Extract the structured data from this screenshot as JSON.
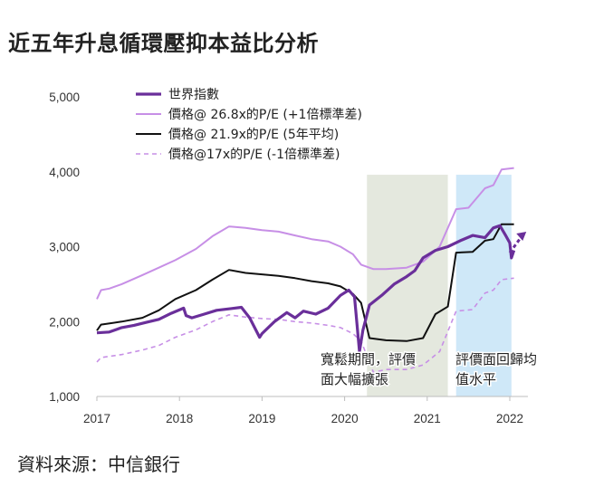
{
  "title": "近五年升息循環壓抑本益比分析",
  "source": "資料來源：中信銀行",
  "chart_data": {
    "type": "line",
    "title": "近五年升息循環壓抑本益比分析",
    "xlabel": "",
    "ylabel": "",
    "xlim": [
      2017.0,
      2022.2
    ],
    "ylim": [
      1000,
      5000
    ],
    "x_ticks": [
      "2017",
      "2018",
      "2019",
      "2020",
      "2021",
      "2022"
    ],
    "y_ticks": [
      "1,000",
      "2,000",
      "3,000",
      "4,000",
      "5,000"
    ],
    "y_tick_values": [
      1000,
      2000,
      3000,
      4000,
      5000
    ],
    "x_tick_values": [
      2017,
      2018,
      2019,
      2020,
      2021,
      2022
    ],
    "legend": [
      {
        "label": "世界指數",
        "style": "thick-solid",
        "color": "#6a2f9a"
      },
      {
        "label": "價格@ 26.8x的P/E (+1倍標準差)",
        "style": "solid",
        "color": "#c78fe6"
      },
      {
        "label": "價格@ 21.9x的P/E (5年平均)",
        "style": "solid",
        "color": "#111111"
      },
      {
        "label": "價格@17x的P/E  (-1倍標準差)",
        "style": "dashed",
        "color": "#c78fe6"
      }
    ],
    "shaded_regions": [
      {
        "from": 2020.27,
        "to": 2021.25,
        "color": "#e4e8de",
        "label_lines": [
          "寬鬆期間，評價",
          "面大幅擴張"
        ]
      },
      {
        "from": 2021.35,
        "to": 2022.02,
        "color": "#cfe8f8",
        "label_lines": [
          "評價面回歸均",
          "值水平"
        ]
      }
    ],
    "series": [
      {
        "name": "世界指數",
        "x": [
          2017.0,
          2017.15,
          2017.3,
          2017.45,
          2017.6,
          2017.75,
          2017.9,
          2018.05,
          2018.08,
          2018.15,
          2018.3,
          2018.45,
          2018.6,
          2018.75,
          2018.85,
          2018.97,
          2019.0,
          2019.15,
          2019.3,
          2019.4,
          2019.5,
          2019.65,
          2019.8,
          2019.95,
          2020.05,
          2020.12,
          2020.18,
          2020.22,
          2020.3,
          2020.45,
          2020.6,
          2020.75,
          2020.85,
          2020.95,
          2021.1,
          2021.25,
          2021.4,
          2021.55,
          2021.7,
          2021.8,
          2021.88,
          2021.95,
          2022.0,
          2022.02,
          2022.05
        ],
        "values": [
          1850,
          1860,
          1920,
          1950,
          1990,
          2030,
          2110,
          2180,
          2080,
          2050,
          2100,
          2150,
          2170,
          2190,
          2050,
          1790,
          1840,
          2000,
          2120,
          2050,
          2140,
          2100,
          2180,
          2350,
          2420,
          2330,
          1600,
          1880,
          2220,
          2350,
          2500,
          2600,
          2680,
          2850,
          2950,
          3000,
          3080,
          3150,
          3120,
          3250,
          3280,
          3150,
          3050,
          2850,
          2950
        ]
      },
      {
        "name": "價格@ 26.8x的P/E (+1倍標準差)",
        "x": [
          2017.0,
          2017.05,
          2017.15,
          2017.3,
          2017.55,
          2017.75,
          2017.95,
          2018.2,
          2018.4,
          2018.6,
          2018.8,
          2019.0,
          2019.2,
          2019.4,
          2019.6,
          2019.8,
          2019.95,
          2020.1,
          2020.2,
          2020.35,
          2020.5,
          2020.75,
          2020.95,
          2021.15,
          2021.35,
          2021.5,
          2021.7,
          2021.8,
          2021.9,
          2022.05
        ],
        "values": [
          2300,
          2420,
          2440,
          2500,
          2620,
          2720,
          2820,
          2970,
          3140,
          3270,
          3250,
          3220,
          3200,
          3150,
          3100,
          3070,
          3000,
          2900,
          2760,
          2700,
          2700,
          2720,
          2800,
          3000,
          3500,
          3520,
          3780,
          3820,
          4030,
          4050
        ]
      },
      {
        "name": "價格@ 21.9x的P/E (5年平均)",
        "x": [
          2017.0,
          2017.05,
          2017.3,
          2017.55,
          2017.75,
          2017.95,
          2018.2,
          2018.4,
          2018.6,
          2018.8,
          2019.0,
          2019.2,
          2019.4,
          2019.6,
          2019.8,
          2019.95,
          2020.1,
          2020.2,
          2020.3,
          2020.5,
          2020.75,
          2020.95,
          2021.1,
          2021.25,
          2021.35,
          2021.55,
          2021.7,
          2021.8,
          2021.9,
          2022.05
        ],
        "values": [
          1880,
          1960,
          2000,
          2050,
          2150,
          2300,
          2420,
          2560,
          2690,
          2650,
          2630,
          2610,
          2580,
          2540,
          2510,
          2470,
          2370,
          2250,
          1780,
          1750,
          1740,
          1780,
          2100,
          2200,
          2920,
          2930,
          3080,
          3100,
          3300,
          3300
        ]
      },
      {
        "name": "價格@17x的P/E  (-1倍標準差)",
        "x": [
          2017.0,
          2017.05,
          2017.3,
          2017.55,
          2017.75,
          2017.95,
          2018.2,
          2018.4,
          2018.6,
          2018.8,
          2019.0,
          2019.2,
          2019.4,
          2019.6,
          2019.8,
          2019.95,
          2020.1,
          2020.2,
          2020.35,
          2020.5,
          2020.75,
          2020.95,
          2021.15,
          2021.35,
          2021.55,
          2021.7,
          2021.8,
          2021.9,
          2022.05
        ],
        "values": [
          1460,
          1520,
          1560,
          1620,
          1680,
          1790,
          1890,
          2000,
          2090,
          2060,
          2040,
          2030,
          2000,
          1980,
          1950,
          1920,
          1840,
          1740,
          1320,
          1360,
          1360,
          1420,
          1600,
          2140,
          2160,
          2380,
          2420,
          2560,
          2580
        ]
      }
    ],
    "annotations": [
      {
        "type": "arrow",
        "style": "dashed",
        "color": "#6a2f9a",
        "from": {
          "x": 2022.0,
          "y": 2920
        },
        "to": {
          "x": 2022.2,
          "y": 3200
        }
      }
    ]
  }
}
